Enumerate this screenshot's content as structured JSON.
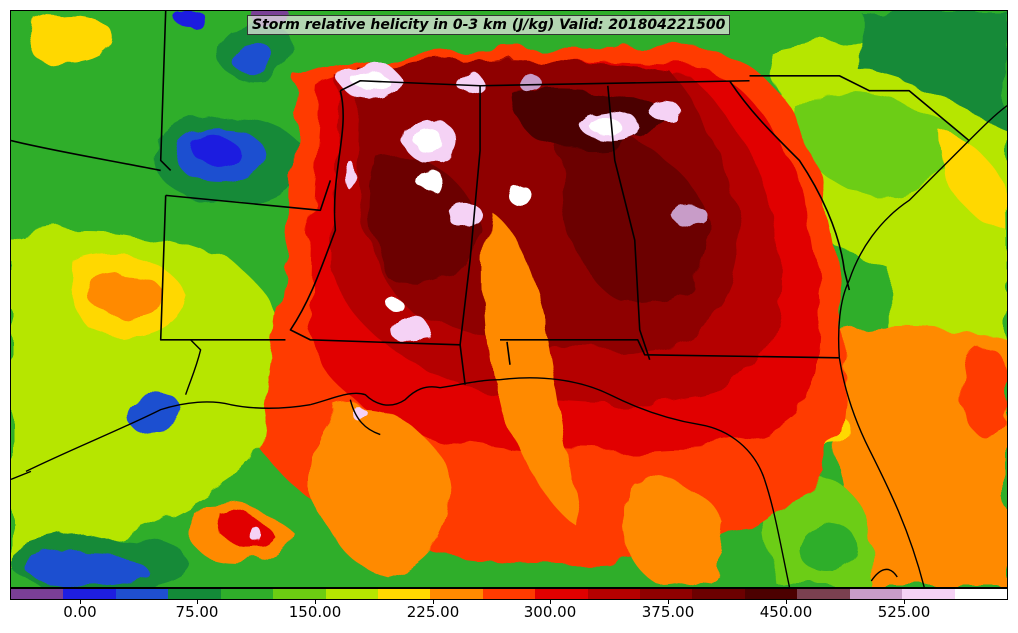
{
  "title": "Storm relative helicity in 0-3 km (J/kg) Valid: 201804221500",
  "colorbar": {
    "colors": [
      "#7a3f96",
      "#1e1ee0",
      "#1f4fd0",
      "#138a38",
      "#2fae2a",
      "#6ccd12",
      "#b6e600",
      "#ffd800",
      "#ff8a00",
      "#ff3b00",
      "#e10000",
      "#b50000",
      "#8f0000",
      "#6c0000",
      "#4c0000",
      "#7a4050",
      "#c89cc8",
      "#f5d2f5",
      "#ffffff"
    ],
    "tick_labels": [
      "0.00",
      "75.00",
      "150.00",
      "225.00",
      "300.00",
      "375.00",
      "450.00",
      "525.00"
    ]
  }
}
